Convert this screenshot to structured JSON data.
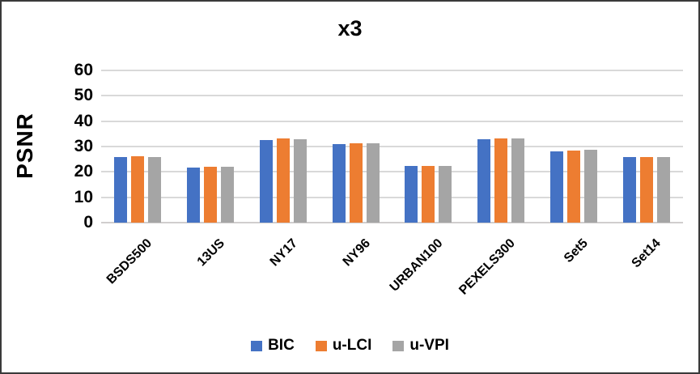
{
  "title": "x3",
  "chart_data": {
    "type": "bar",
    "title": "x3",
    "ylabel": "PSNR",
    "xlabel": "",
    "ylim": [
      0,
      60
    ],
    "yticks": [
      0,
      10,
      20,
      30,
      40,
      50,
      60
    ],
    "grid": true,
    "legend_position": "bottom",
    "categories": [
      "BSDS500",
      "13US",
      "NY17",
      "NY96",
      "URBAN100",
      "PEXELS300",
      "Set5",
      "Set14"
    ],
    "series": [
      {
        "name": "BIC",
        "color": "#4472C4",
        "values": [
          26.0,
          21.8,
          32.5,
          31.0,
          22.4,
          32.9,
          28.0,
          25.7
        ]
      },
      {
        "name": "u-LCI",
        "color": "#ED7D31",
        "values": [
          26.1,
          21.9,
          33.1,
          31.4,
          22.5,
          33.3,
          28.4,
          25.8
        ]
      },
      {
        "name": "u-VPI",
        "color": "#A5A5A5",
        "values": [
          26.0,
          21.9,
          33.0,
          31.3,
          22.4,
          33.2,
          28.8,
          25.8
        ]
      }
    ],
    "colors": {
      "gridline": "#d9d9d9",
      "text": "#000000"
    }
  }
}
